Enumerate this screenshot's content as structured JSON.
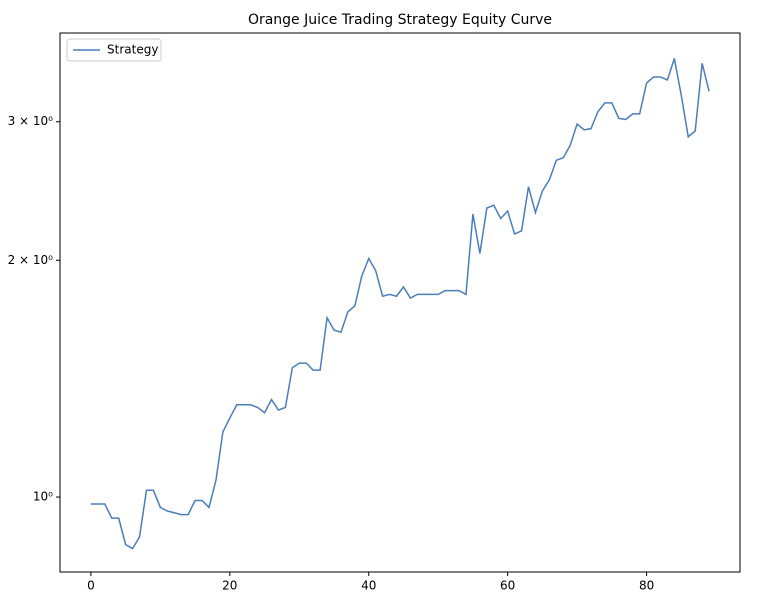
{
  "chart_data": {
    "type": "line",
    "title": "Orange Juice Trading Strategy Equity Curve",
    "x": [
      0,
      1,
      2,
      3,
      4,
      5,
      6,
      7,
      8,
      9,
      10,
      11,
      12,
      13,
      14,
      15,
      16,
      17,
      18,
      19,
      20,
      21,
      22,
      23,
      24,
      25,
      26,
      27,
      28,
      29,
      30,
      31,
      32,
      33,
      34,
      35,
      36,
      37,
      38,
      39,
      40,
      41,
      42,
      43,
      44,
      45,
      46,
      47,
      48,
      49,
      50,
      51,
      52,
      53,
      54,
      55,
      56,
      57,
      58,
      59,
      60,
      61,
      62,
      63,
      64,
      65,
      66,
      67,
      68,
      69,
      70,
      71,
      72,
      73,
      74,
      75,
      76,
      77,
      78,
      79,
      80,
      81,
      82,
      83,
      84,
      85,
      86,
      87,
      88,
      89
    ],
    "series": [
      {
        "name": "Strategy",
        "color": "#4a7ebb",
        "values": [
          0.98,
          0.98,
          0.98,
          0.94,
          0.94,
          0.87,
          0.86,
          0.89,
          1.02,
          1.02,
          0.97,
          0.96,
          0.955,
          0.95,
          0.95,
          0.99,
          0.99,
          0.97,
          1.05,
          1.21,
          1.26,
          1.31,
          1.31,
          1.31,
          1.3,
          1.28,
          1.33,
          1.29,
          1.3,
          1.46,
          1.48,
          1.48,
          1.45,
          1.45,
          1.69,
          1.63,
          1.62,
          1.72,
          1.75,
          1.91,
          2.01,
          1.94,
          1.8,
          1.81,
          1.8,
          1.85,
          1.79,
          1.81,
          1.81,
          1.81,
          1.81,
          1.83,
          1.83,
          1.83,
          1.81,
          2.29,
          2.04,
          2.33,
          2.35,
          2.26,
          2.31,
          2.16,
          2.18,
          2.48,
          2.3,
          2.45,
          2.53,
          2.68,
          2.7,
          2.8,
          2.98,
          2.93,
          2.94,
          3.09,
          3.17,
          3.17,
          3.03,
          3.02,
          3.07,
          3.07,
          3.36,
          3.42,
          3.42,
          3.39,
          3.61,
          3.24,
          2.87,
          2.92,
          3.56,
          3.28
        ]
      }
    ],
    "xlim": [
      -4.45,
      93.45
    ],
    "xticks": [
      0,
      20,
      40,
      60,
      80
    ],
    "ylim": [
      0.803,
      3.89
    ],
    "log_y": true,
    "yticks": [
      {
        "value": 1,
        "label": "10⁰"
      },
      {
        "value": 2,
        "label": "2 × 10⁰"
      },
      {
        "value": 3,
        "label": "3 × 10⁰"
      }
    ],
    "legend": "upper left"
  }
}
